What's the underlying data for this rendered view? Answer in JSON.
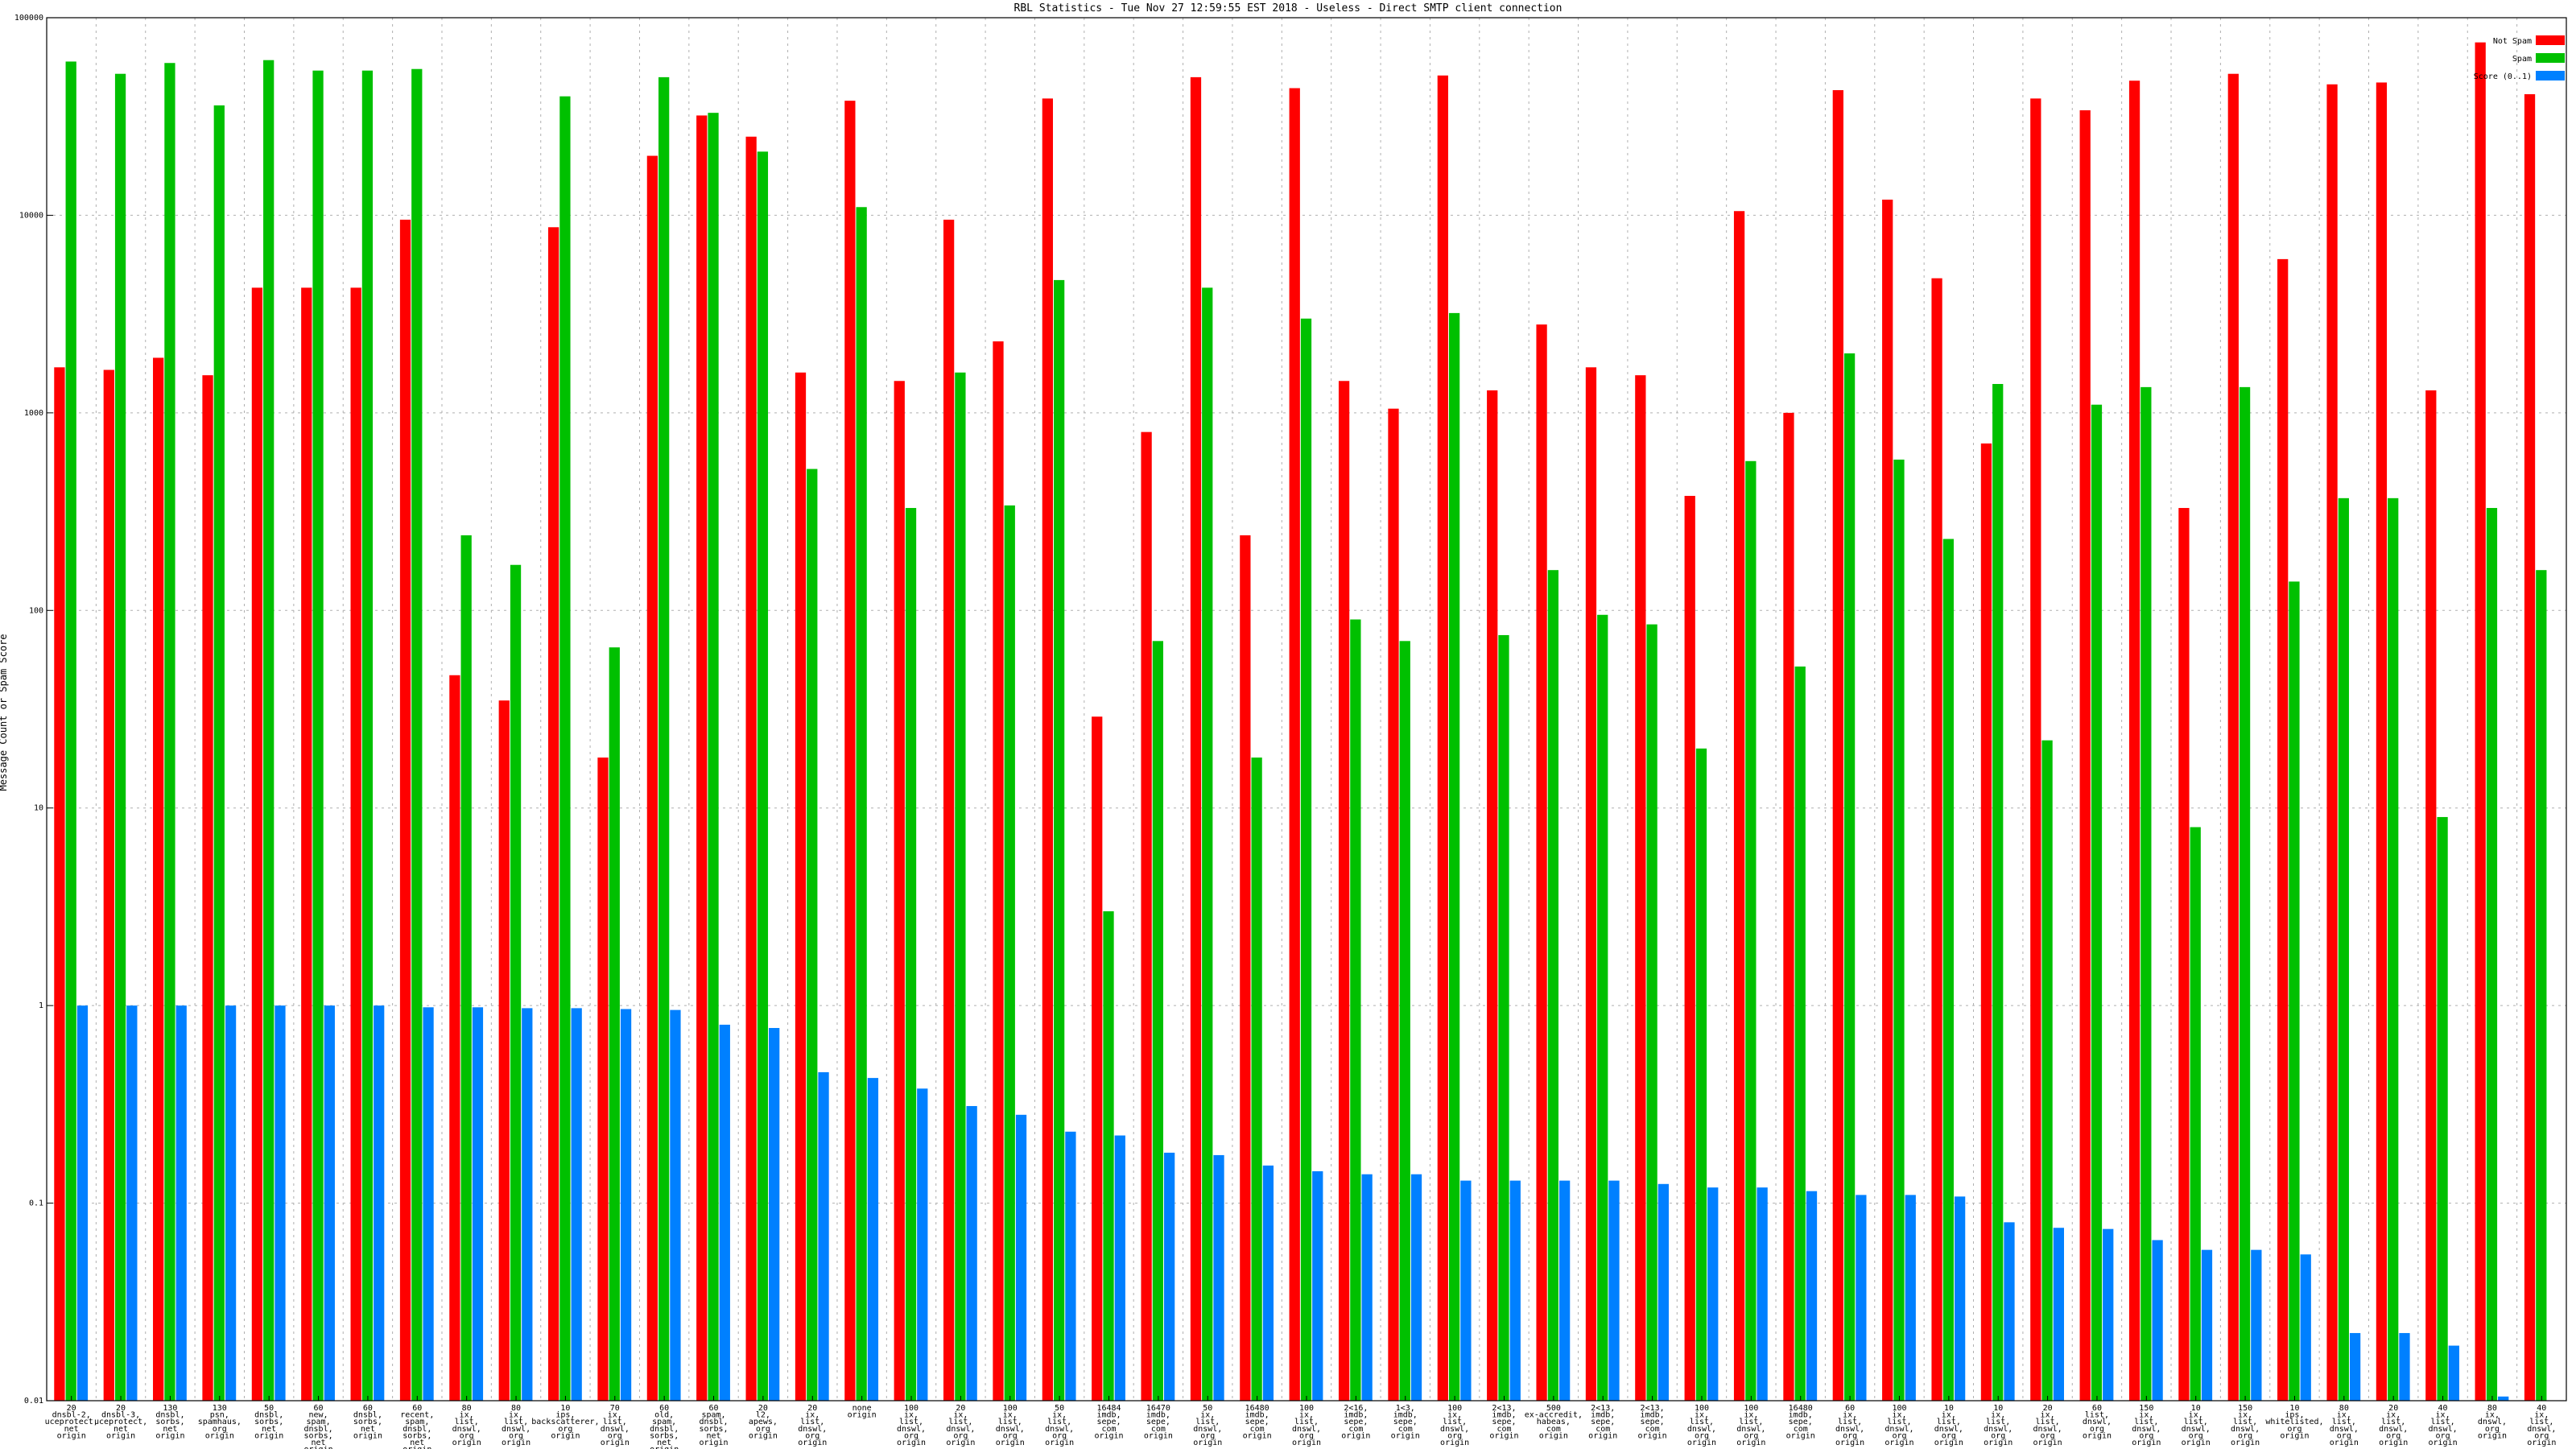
{
  "chart_data": {
    "type": "bar",
    "title": "RBL Statistics - Tue Nov 27 12:59:55 EST 2018 - Useless - Direct SMTP client connection",
    "xlabel": "",
    "ylabel": "Message Count or Spam Score",
    "yscale": "log",
    "ylim": [
      0.01,
      100000
    ],
    "yticks": [
      {
        "value": 0.01,
        "label": "0.01"
      },
      {
        "value": 0.1,
        "label": "0.1"
      },
      {
        "value": 1,
        "label": "1"
      },
      {
        "value": 10,
        "label": "10"
      },
      {
        "value": 100,
        "label": "100"
      },
      {
        "value": 1000,
        "label": "1000"
      },
      {
        "value": 10000,
        "label": "10000"
      },
      {
        "value": 100000,
        "label": "100000"
      }
    ],
    "grid": true,
    "legend_position": "top-right",
    "colors": {
      "not_spam": "#ff0000",
      "spam": "#00c000",
      "score": "#0080ff"
    },
    "categories": [
      [
        "20",
        "dnsbl-2,",
        "uceprotect,",
        "net",
        "origin"
      ],
      [
        "20",
        "dnsbl-3,",
        "uceprotect,",
        "net",
        "origin"
      ],
      [
        "130",
        "dnsbl,",
        "sorbs,",
        "net",
        "origin"
      ],
      [
        "130",
        "psn,",
        "spamhaus,",
        "org",
        "origin"
      ],
      [
        "50",
        "dnsbl,",
        "sorbs,",
        "net",
        "origin"
      ],
      [
        "60",
        "new,",
        "spam,",
        "dnsbl,",
        "sorbs,",
        "net",
        "origin"
      ],
      [
        "60",
        "dnsbl,",
        "sorbs,",
        "net",
        "origin"
      ],
      [
        "60",
        "recent,",
        "spam,",
        "dnsbl,",
        "sorbs,",
        "net",
        "origin"
      ],
      [
        "80",
        "ix,",
        "list,",
        "dnswl,",
        "org",
        "origin"
      ],
      [
        "80",
        "ix,",
        "list,",
        "dnswl,",
        "org",
        "origin"
      ],
      [
        "10",
        "ips,",
        "backscatterer,",
        "org",
        "origin"
      ],
      [
        "70",
        "ix,",
        "list,",
        "dnswl,",
        "org",
        "origin"
      ],
      [
        "60",
        "old,",
        "spam,",
        "dnsbl,",
        "sorbs,",
        "net",
        "origin"
      ],
      [
        "60",
        "spam,",
        "dnsbl,",
        "sorbs,",
        "net",
        "origin"
      ],
      [
        "20",
        "l2,",
        "apews,",
        "org",
        "origin"
      ],
      [
        "20",
        "ix,",
        "list,",
        "dnswl,",
        "org",
        "origin"
      ],
      [
        "none",
        "origin"
      ],
      [
        "100",
        "ix,",
        "list,",
        "dnswl,",
        "org",
        "origin"
      ],
      [
        "20",
        "ix,",
        "list,",
        "dnswl,",
        "org",
        "origin"
      ],
      [
        "100",
        "ix,",
        "list,",
        "dnswl,",
        "org",
        "origin"
      ],
      [
        "50",
        "ix,",
        "list,",
        "dnswl,",
        "org",
        "origin"
      ],
      [
        "16484",
        "imdb,",
        "sepe,",
        "com",
        "origin"
      ],
      [
        "16470",
        "imdb,",
        "sepe,",
        "com",
        "origin"
      ],
      [
        "50",
        "ix,",
        "list,",
        "dnswl,",
        "org",
        "origin"
      ],
      [
        "16480",
        "imdb,",
        "sepe,",
        "com",
        "origin"
      ],
      [
        "100",
        "ix,",
        "list,",
        "dnswl,",
        "org",
        "origin"
      ],
      [
        "2<16,",
        "imdb,",
        "sepe,",
        "com",
        "origin"
      ],
      [
        "1<3,",
        "imdb,",
        "sepe,",
        "com",
        "origin"
      ],
      [
        "100",
        "ix,",
        "list,",
        "dnswl,",
        "org",
        "origin"
      ],
      [
        "2<13,",
        "imdb,",
        "sepe,",
        "com",
        "origin"
      ],
      [
        "500",
        "ex-accredit,",
        "habeas,",
        "com",
        "origin"
      ],
      [
        "2<13,",
        "imdb,",
        "sepe,",
        "com",
        "origin"
      ],
      [
        "2<13,",
        "imdb,",
        "sepe,",
        "com",
        "origin"
      ],
      [
        "100",
        "ix,",
        "list,",
        "dnswl,",
        "org",
        "origin"
      ],
      [
        "100",
        "ix,",
        "list,",
        "dnswl,",
        "org",
        "origin"
      ],
      [
        "16480",
        "imdb,",
        "sepe,",
        "com",
        "origin"
      ],
      [
        "60",
        "ix,",
        "list,",
        "dnswl,",
        "org",
        "origin"
      ],
      [
        "100",
        "ix,",
        "list,",
        "dnswl,",
        "org",
        "origin"
      ],
      [
        "10",
        "ix,",
        "list,",
        "dnswl,",
        "org",
        "origin"
      ],
      [
        "10",
        "ix,",
        "list,",
        "dnswl,",
        "org",
        "origin"
      ],
      [
        "20",
        "ix,",
        "list,",
        "dnswl,",
        "org",
        "origin"
      ],
      [
        "60",
        "list,",
        "dnswl,",
        "org",
        "origin"
      ],
      [
        "150",
        "ix,",
        "list,",
        "dnswl,",
        "org",
        "origin"
      ],
      [
        "10",
        "ix,",
        "list,",
        "dnswl,",
        "org",
        "origin"
      ],
      [
        "150",
        "ix,",
        "list,",
        "dnswl,",
        "org",
        "origin"
      ],
      [
        "10",
        "ips,",
        "whitelisted,",
        "org",
        "origin"
      ],
      [
        "80",
        "ix,",
        "list,",
        "dnswl,",
        "org",
        "origin"
      ],
      [
        "20",
        "ix,",
        "list,",
        "dnswl,",
        "org",
        "origin"
      ],
      [
        "40",
        "ix,",
        "list,",
        "dnswl,",
        "org",
        "origin"
      ],
      [
        "80",
        "ix,",
        "dnswl,",
        "org",
        "origin"
      ],
      [
        "40",
        "ix,",
        "list,",
        "dnswl,",
        "org",
        "origin"
      ]
    ],
    "series": [
      {
        "name": "Not Spam",
        "values": [
          1700,
          1650,
          1900,
          1550,
          4300,
          4300,
          4300,
          9500,
          47,
          35,
          8700,
          18,
          20000,
          32000,
          25000,
          1600,
          38000,
          1450,
          9500,
          2300,
          39000,
          29,
          800,
          50000,
          240,
          44000,
          1450,
          1050,
          51000,
          1300,
          2800,
          1700,
          1550,
          380,
          10500,
          1000,
          43000,
          12000,
          4800,
          700,
          39000,
          34000,
          48000,
          330,
          52000,
          6000,
          46000,
          47000,
          1300,
          75000,
          41000
        ]
      },
      {
        "name": "Spam",
        "values": [
          60000,
          52000,
          59000,
          36000,
          61000,
          54000,
          54000,
          55000,
          240,
          170,
          40000,
          65,
          50000,
          33000,
          21000,
          520,
          11000,
          330,
          1600,
          340,
          4700,
          3,
          70,
          4300,
          18,
          3000,
          90,
          70,
          3200,
          75,
          160,
          95,
          85,
          20,
          570,
          52,
          2000,
          580,
          230,
          1400,
          22,
          1100,
          1350,
          8,
          1350,
          140,
          370,
          370,
          9,
          330,
          160
        ]
      },
      {
        "name": "Score (0..1)",
        "values": [
          1,
          1,
          1,
          1,
          1,
          1,
          1,
          0.98,
          0.98,
          0.97,
          0.97,
          0.96,
          0.95,
          0.8,
          0.77,
          0.46,
          0.43,
          0.38,
          0.31,
          0.28,
          0.23,
          0.22,
          0.18,
          0.175,
          0.155,
          0.145,
          0.14,
          0.14,
          0.13,
          0.13,
          0.13,
          0.13,
          0.125,
          0.12,
          0.12,
          0.115,
          0.11,
          0.11,
          0.108,
          0.08,
          0.075,
          0.074,
          0.065,
          0.058,
          0.058,
          0.055,
          0.022,
          0.022,
          0.019,
          0.0105,
          0.01
        ]
      }
    ],
    "legend": [
      {
        "label": "Not Spam",
        "color": "#ff0000"
      },
      {
        "label": "Spam",
        "color": "#00c000"
      },
      {
        "label": "Score (0..1)",
        "color": "#0080ff"
      }
    ]
  }
}
